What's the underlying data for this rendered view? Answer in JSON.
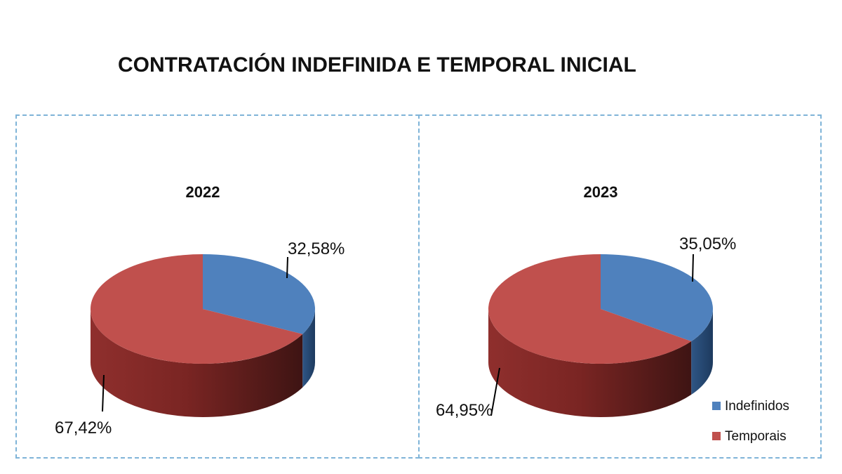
{
  "title": "CONTRATACIÓN INDEFINIDA E TEMPORAL INICIAL",
  "legend": {
    "position": "bottom-right",
    "items": [
      {
        "label": "Indefinidos",
        "color": "#4f81bd"
      },
      {
        "label": "Temporais",
        "color": "#c0504d"
      }
    ]
  },
  "chart_data": [
    {
      "type": "pie",
      "title": "2022",
      "labels": [
        "Indefinidos",
        "Temporais"
      ],
      "values": [
        32.58,
        67.42
      ],
      "value_labels": [
        "32,58%",
        "67,42%"
      ],
      "colors": [
        "#4f81bd",
        "#c0504d"
      ],
      "style": "3d"
    },
    {
      "type": "pie",
      "title": "2023",
      "labels": [
        "Indefinidos",
        "Temporais"
      ],
      "values": [
        35.05,
        64.95
      ],
      "value_labels": [
        "35,05%",
        "64,95%"
      ],
      "colors": [
        "#4f81bd",
        "#c0504d"
      ],
      "style": "3d"
    }
  ]
}
